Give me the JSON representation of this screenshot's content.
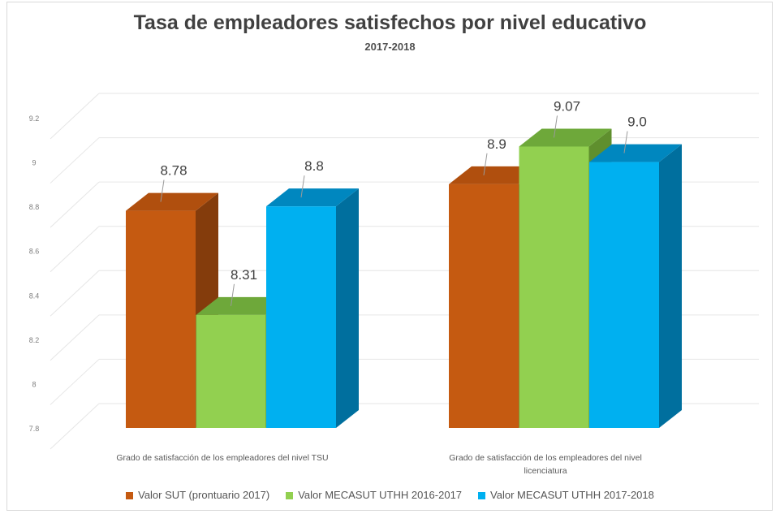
{
  "chart_data": {
    "type": "bar",
    "title": "Tasa de empleadores satisfechos por nivel educativo",
    "subtitle": "2017-2018",
    "categories": [
      "Grado de satisfacción de los empleadores del nivel TSU",
      "Grado de satisfacción de los empleadores del nivel licenciatura"
    ],
    "category_label_lines": [
      [
        "Grado de satisfacción de los empleadores del nivel TSU"
      ],
      [
        "Grado de satisfacción de los empleadores del nivel",
        "licenciatura"
      ]
    ],
    "series": [
      {
        "name": "Valor SUT (prontuario 2017)",
        "values": [
          8.78,
          8.9
        ],
        "labels": [
          "8.78",
          "8.9"
        ],
        "color": "#c55a11",
        "top_color": "#b04f0e",
        "side_color": "#843c0c"
      },
      {
        "name": "Valor MECASUT UTHH 2016-2017",
        "values": [
          8.31,
          9.07
        ],
        "labels": [
          "8.31",
          "9.07"
        ],
        "color": "#92d050",
        "top_color": "#6ea83a",
        "side_color": "#5f8f2e"
      },
      {
        "name": "Valor MECASUT UTHH 2017-2018",
        "values": [
          8.8,
          9.0
        ],
        "labels": [
          "8.8",
          "9.0"
        ],
        "color": "#00b0f0",
        "top_color": "#0087bf",
        "side_color": "#006f9e"
      }
    ],
    "ylim": [
      7.8,
      9.2
    ],
    "yticks": [
      "7.8",
      "8",
      "8.2",
      "8.4",
      "8.6",
      "8.8",
      "9",
      "9.2"
    ],
    "grid": true,
    "legend_position": "bottom"
  }
}
